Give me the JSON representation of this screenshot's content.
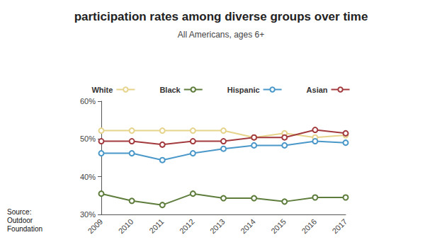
{
  "chart_data": {
    "type": "line",
    "title": "participation rates among diverse groups over time",
    "subtitle": "All Americans, ages 6+",
    "annotations": [
      "Source:",
      "Outdoor",
      "Foundation"
    ],
    "categories": [
      "2009",
      "2010",
      "2011",
      "2012",
      "2013",
      "2014",
      "2015",
      "2016",
      "2017"
    ],
    "series": [
      {
        "name": "White",
        "color": "#e6d38c",
        "values": [
          52.2,
          52.2,
          52.2,
          52.2,
          52.2,
          50.4,
          51.5,
          50.4,
          51.0
        ]
      },
      {
        "name": "Black",
        "color": "#5e7d3c",
        "values": [
          35.5,
          33.6,
          32.5,
          35.5,
          34.3,
          34.3,
          33.4,
          34.5,
          34.5
        ]
      },
      {
        "name": "Hispanic",
        "color": "#4a98c9",
        "values": [
          46.2,
          46.2,
          44.4,
          46.2,
          47.4,
          48.3,
          48.3,
          49.4,
          49.0
        ]
      },
      {
        "name": "Asian",
        "color": "#a23a3e",
        "values": [
          49.4,
          49.4,
          48.5,
          49.4,
          49.4,
          50.4,
          50.4,
          52.4,
          51.5
        ]
      }
    ],
    "ylim": [
      30,
      60
    ],
    "yticks": [
      {
        "value": 30,
        "label": "30%"
      },
      {
        "value": 40,
        "label": "40%"
      },
      {
        "value": 50,
        "label": "50%"
      },
      {
        "value": 60,
        "label": "60%"
      }
    ],
    "grid": false,
    "legend": "top",
    "marker": "emptyCircle"
  }
}
